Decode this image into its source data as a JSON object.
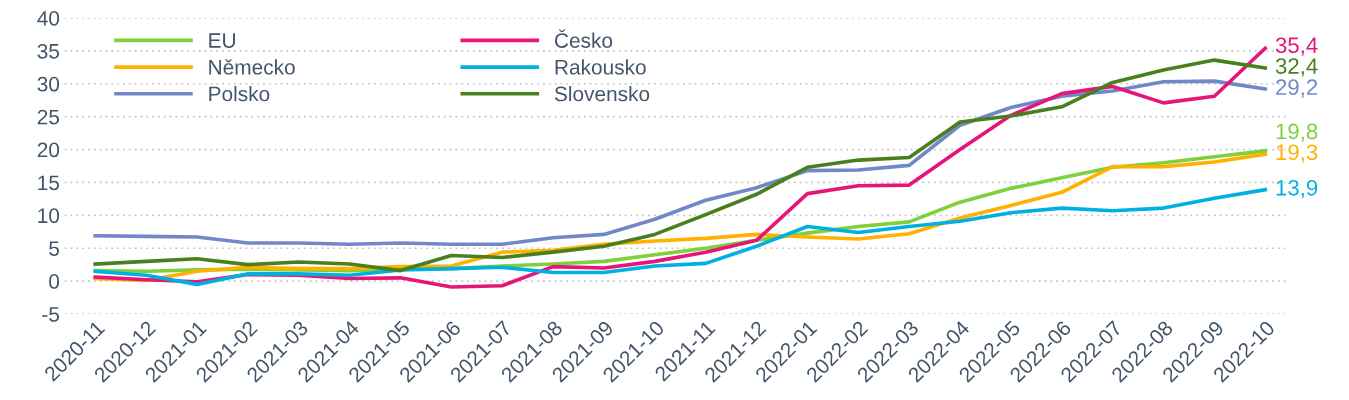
{
  "chart_data": {
    "type": "line",
    "categories": [
      "2020-11",
      "2020-12",
      "2021-01",
      "2021-02",
      "2021-03",
      "2021-04",
      "2021-05",
      "2021-06",
      "2021-07",
      "2021-08",
      "2021-09",
      "2021-10",
      "2021-11",
      "2021-12",
      "2022-01",
      "2022-02",
      "2022-03",
      "2022-04",
      "2022-05",
      "2022-06",
      "2022-07",
      "2022-08",
      "2022-09",
      "2022-10"
    ],
    "series": [
      {
        "name": "EU",
        "color": "#7ed13b",
        "values": [
          1.6,
          1.5,
          1.7,
          1.8,
          1.7,
          1.6,
          1.8,
          1.9,
          2.3,
          2.6,
          3.0,
          4.0,
          5.0,
          6.2,
          7.3,
          8.3,
          9.0,
          12.0,
          14.1,
          15.7,
          17.3,
          18.0,
          18.9,
          19.8
        ],
        "value_labels": [
          null,
          null,
          null,
          null,
          null,
          null,
          null,
          null,
          null,
          null,
          null,
          null,
          null,
          null,
          null,
          null,
          null,
          null,
          null,
          null,
          null,
          null,
          null,
          "19,8"
        ]
      },
      {
        "name": "Německo",
        "color": "#ffb000",
        "values": [
          0.4,
          0.1,
          1.5,
          2.1,
          1.9,
          1.9,
          2.2,
          2.3,
          4.4,
          4.7,
          5.6,
          6.1,
          6.5,
          7.1,
          6.7,
          6.4,
          7.2,
          9.6,
          11.5,
          13.5,
          17.4,
          17.4,
          18.1,
          19.3
        ],
        "value_labels": [
          null,
          null,
          null,
          null,
          null,
          null,
          null,
          null,
          null,
          null,
          null,
          null,
          null,
          null,
          null,
          null,
          null,
          null,
          null,
          null,
          null,
          null,
          null,
          "19,3"
        ]
      },
      {
        "name": "Polsko",
        "color": "#7088c8",
        "values": [
          6.9,
          6.8,
          6.7,
          5.8,
          5.8,
          5.6,
          5.8,
          5.6,
          5.6,
          6.6,
          7.1,
          9.4,
          12.3,
          14.2,
          16.8,
          16.9,
          17.6,
          23.7,
          26.4,
          28.1,
          28.9,
          30.3,
          30.4,
          29.2
        ],
        "value_labels": [
          null,
          null,
          null,
          null,
          null,
          null,
          null,
          null,
          null,
          null,
          null,
          null,
          null,
          null,
          null,
          null,
          null,
          null,
          null,
          null,
          null,
          null,
          null,
          "29,2"
        ]
      },
      {
        "name": "Česko",
        "color": "#e6157a",
        "values": [
          0.6,
          0.2,
          -0.1,
          1.0,
          0.9,
          0.4,
          0.5,
          -0.9,
          -0.7,
          2.2,
          2.0,
          3.0,
          4.4,
          6.2,
          13.3,
          14.5,
          14.6,
          20.0,
          25.2,
          28.5,
          29.6,
          27.1,
          28.1,
          35.4
        ],
        "value_labels": [
          null,
          null,
          null,
          null,
          null,
          null,
          null,
          null,
          null,
          null,
          null,
          null,
          null,
          null,
          null,
          null,
          null,
          null,
          null,
          null,
          null,
          null,
          null,
          "35,4"
        ]
      },
      {
        "name": "Rakousko",
        "color": "#00b0e0",
        "values": [
          1.5,
          0.9,
          -0.5,
          1.1,
          1.1,
          0.9,
          1.7,
          1.9,
          2.1,
          1.3,
          1.3,
          2.3,
          2.7,
          5.3,
          8.3,
          7.4,
          8.3,
          9.1,
          10.4,
          11.1,
          10.7,
          11.1,
          12.6,
          13.9
        ],
        "value_labels": [
          null,
          null,
          null,
          null,
          null,
          null,
          null,
          null,
          null,
          null,
          null,
          null,
          null,
          null,
          null,
          null,
          null,
          null,
          null,
          null,
          null,
          null,
          null,
          "13,9"
        ]
      },
      {
        "name": "Slovensko",
        "color": "#4a7f1e",
        "values": [
          2.6,
          3.0,
          3.4,
          2.5,
          2.9,
          2.6,
          1.6,
          3.9,
          3.6,
          4.4,
          5.3,
          7.1,
          10.1,
          13.2,
          17.3,
          18.4,
          18.8,
          24.2,
          25.1,
          26.5,
          30.2,
          32.1,
          33.6,
          32.4
        ],
        "value_labels": [
          null,
          null,
          null,
          null,
          null,
          null,
          null,
          null,
          null,
          null,
          null,
          null,
          null,
          null,
          null,
          null,
          null,
          null,
          null,
          null,
          null,
          null,
          null,
          "32,4"
        ]
      }
    ],
    "ylim": [
      -5,
      40
    ],
    "yticks": [
      -5,
      0,
      5,
      10,
      15,
      20,
      25,
      30,
      35,
      40
    ],
    "grid": "y",
    "legend": "top left",
    "marker": "none",
    "line_style": "solid"
  }
}
